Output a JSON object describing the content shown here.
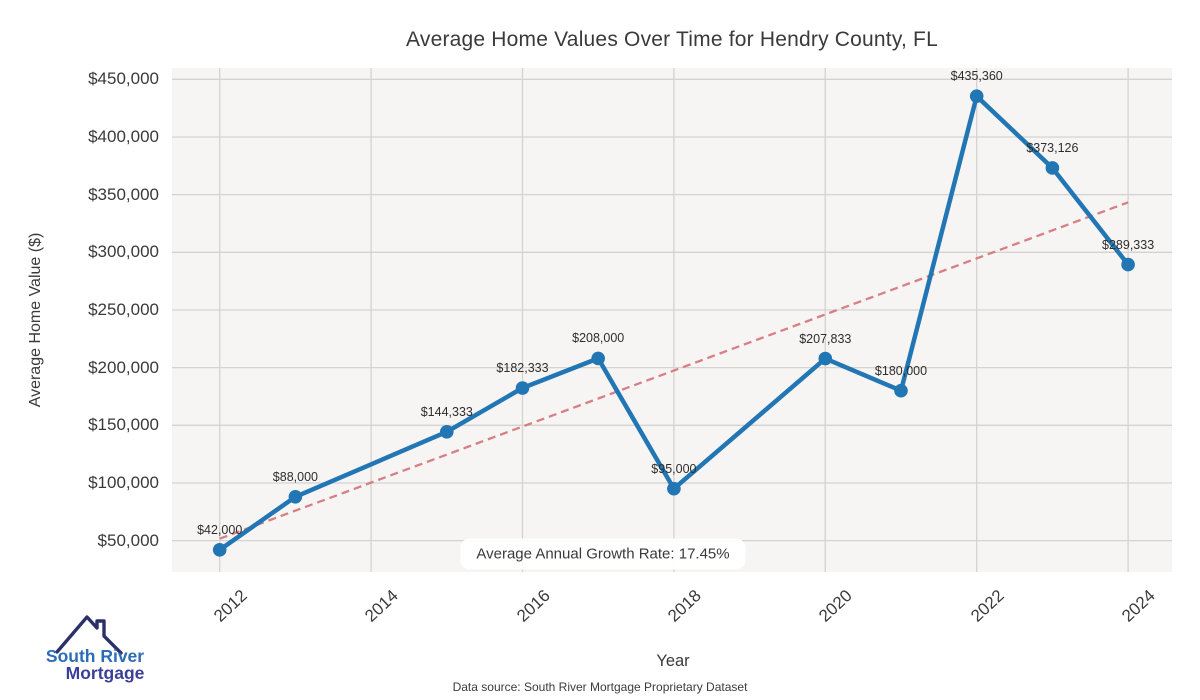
{
  "page": {
    "annotation": "Average Annual Growth Rate: 17.45%",
    "footer": "Data source: South River Mortgage Proprietary Dataset",
    "logo": {
      "line1": "South River",
      "line2": "Mortgage"
    }
  },
  "chart_data": {
    "type": "line",
    "title": "Average Home Values Over Time for Hendry County, FL",
    "xlabel": "Year",
    "ylabel": "Average Home Value ($)",
    "series_name": "Average Home Value",
    "x": [
      2012,
      2013,
      2015,
      2016,
      2017,
      2018,
      2020,
      2021,
      2022,
      2023,
      2024
    ],
    "values": [
      42000,
      88000,
      144333,
      182333,
      208000,
      95000,
      207833,
      180000,
      435360,
      373126,
      289333
    ],
    "point_labels": [
      "$42,000",
      "$88,000",
      "$144,333",
      "$182,333",
      "$208,000",
      "$95,000",
      "$207,833",
      "$180,000",
      "$435,360",
      "$373,126",
      "$289,333"
    ],
    "x_ticks": [
      2012,
      2014,
      2016,
      2018,
      2020,
      2022,
      2024
    ],
    "x_tick_labels": [
      "2012",
      "2014",
      "2016",
      "2018",
      "2020",
      "2022",
      "2024"
    ],
    "y_ticks": [
      50000,
      100000,
      150000,
      200000,
      250000,
      300000,
      350000,
      400000,
      450000
    ],
    "y_tick_labels": [
      "$50,000",
      "$100,000",
      "$150,000",
      "$200,000",
      "$250,000",
      "$300,000",
      "$350,000",
      "$400,000",
      "$450,000"
    ],
    "xlim": [
      2011.37,
      2024.58
    ],
    "ylim": [
      22800,
      459800
    ],
    "grid": true,
    "trendline": {
      "style": "dashed",
      "x": [
        2012,
        2024
      ],
      "values": [
        51700,
        343300
      ]
    },
    "annotation": "Average Annual Growth Rate: 17.45%",
    "colors": {
      "line": "#2276b4",
      "marker": "#2276b4",
      "trend": "#d4737a",
      "plot_bg": "#f6f5f3",
      "grid": "#d4d3d1",
      "text": "#3a3a3a",
      "logo_blue": "#2e6cb5",
      "logo_indigo": "#3b3f96",
      "logo_roof": "#2b3166"
    }
  }
}
